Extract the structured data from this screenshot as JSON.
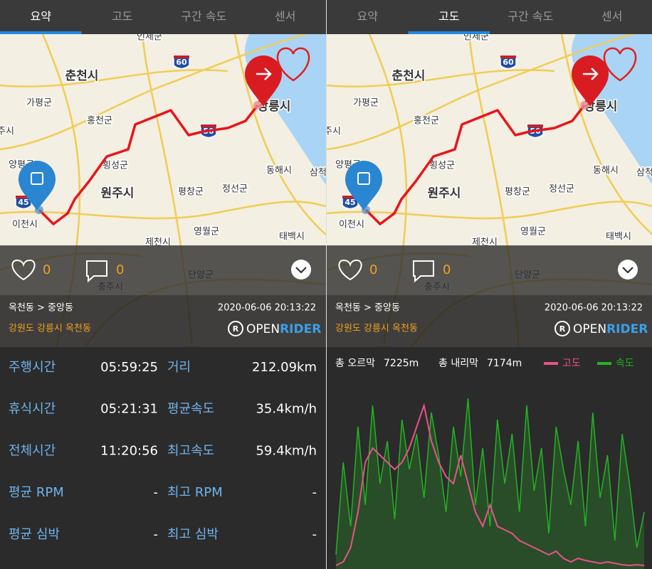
{
  "tabs": [
    "요약",
    "고도",
    "구간 속도",
    "센서"
  ],
  "panels": [
    {
      "active_tab": 0
    },
    {
      "active_tab": 1
    }
  ],
  "map_labels": [
    "인제군",
    "춘천시",
    "가평군",
    "홍천군",
    "횡성군",
    "양평군",
    "원주시",
    "평창군",
    "정선군",
    "동해시",
    "이천시",
    "영월군",
    "태백시",
    "제천시",
    "단양군",
    "충주시",
    "강릉시",
    "주시",
    "삼척"
  ],
  "shields": [
    "60",
    "45",
    "50"
  ],
  "likes": 0,
  "comments": 0,
  "route_text": "옥천동 > 중앙동",
  "datetime": "2020-06-06 20:13:22",
  "location": "강원도 강릉시 옥천동",
  "brand_icon": "R",
  "brand": [
    "OPEN",
    "RIDER"
  ],
  "stats": [
    [
      "주행시간",
      "05:59:25",
      "거리",
      "212.09km"
    ],
    [
      "휴식시간",
      "05:21:31",
      "평균속도",
      "35.4km/h"
    ],
    [
      "전체시간",
      "11:20:56",
      "최고속도",
      "59.4km/h"
    ],
    [
      "평균 RPM",
      "-",
      "최고 RPM",
      "-"
    ],
    [
      "평균 심박",
      "-",
      "최고 심박",
      "-"
    ]
  ],
  "elevation_summary": {
    "gain_label": "총 오르막",
    "gain": "7225m",
    "loss_label": "총 내리막",
    "loss": "7174m"
  },
  "chart_data": {
    "type": "line",
    "series": [
      {
        "name": "고도",
        "color": "#e8528a",
        "values": [
          5,
          10,
          30,
          80,
          150,
          170,
          160,
          150,
          140,
          150,
          170,
          200,
          230,
          180,
          150,
          130,
          120,
          160,
          120,
          80,
          60,
          90,
          60,
          55,
          50,
          40,
          35,
          30,
          25,
          20,
          25,
          15,
          10,
          15,
          12,
          10,
          8,
          10,
          8,
          6,
          5,
          6,
          5
        ]
      },
      {
        "name": "속도",
        "color": "#22b422",
        "values": [
          20,
          150,
          60,
          200,
          90,
          230,
          120,
          180,
          70,
          210,
          140,
          190,
          100,
          220,
          160,
          80,
          200,
          130,
          240,
          90,
          170,
          60,
          210,
          120,
          190,
          80,
          230,
          110,
          170,
          50,
          200,
          140,
          90,
          180,
          60,
          220,
          100,
          160,
          40,
          190,
          120,
          30,
          80
        ]
      }
    ]
  }
}
